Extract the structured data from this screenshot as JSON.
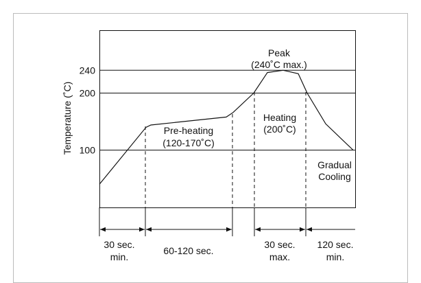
{
  "chart_data": {
    "type": "line",
    "ylabel": "Temperature (˚C)",
    "y_ticks": [
      {
        "value": 100,
        "label": "100"
      },
      {
        "value": 200,
        "label": "200"
      },
      {
        "value": 240,
        "label": "240"
      }
    ],
    "series": [
      {
        "points": [
          {
            "t": 0,
            "temp": 40
          },
          {
            "t": 68,
            "temp": 140
          },
          {
            "t": 75,
            "temp": 144
          },
          {
            "t": 185,
            "temp": 158
          },
          {
            "t": 195,
            "temp": 166
          },
          {
            "t": 225,
            "temp": 200
          },
          {
            "t": 245,
            "temp": 236
          },
          {
            "t": 268,
            "temp": 240
          },
          {
            "t": 290,
            "temp": 234
          },
          {
            "t": 303,
            "temp": 200
          },
          {
            "t": 330,
            "temp": 146
          },
          {
            "t": 370,
            "temp": 100
          }
        ]
      }
    ],
    "annotations": {
      "peak": [
        "Peak",
        "(240˚C max.)"
      ],
      "preheating": [
        "Pre-heating",
        "(120-170˚C)"
      ],
      "heating": [
        "Heating",
        "(200˚C)"
      ],
      "cooling": [
        "Gradual",
        "Cooling"
      ]
    },
    "segments": [
      {
        "lines": [
          "30 sec.",
          "min."
        ]
      },
      {
        "lines": [
          "60-120 sec."
        ]
      },
      {
        "lines": [
          "30 sec.",
          "max."
        ]
      },
      {
        "lines": [
          "120 sec.",
          "min."
        ]
      }
    ]
  }
}
